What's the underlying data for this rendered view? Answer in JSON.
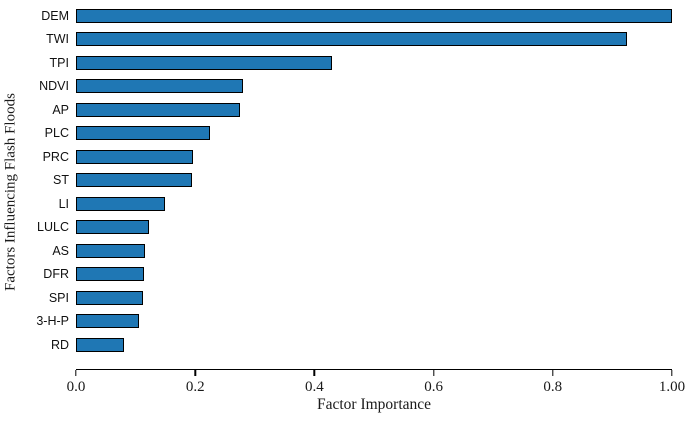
{
  "chart_data": {
    "type": "bar",
    "orientation": "horizontal",
    "title": "",
    "xlabel": "Factor Importance",
    "ylabel": "Factors Influencing Flash Floods",
    "categories": [
      "DEM",
      "TWI",
      "TPI",
      "NDVI",
      "AP",
      "PLC",
      "PRC",
      "ST",
      "LI",
      "LULC",
      "AS",
      "DFR",
      "SPI",
      "3-H-P",
      "RD"
    ],
    "values": [
      1.0,
      0.925,
      0.43,
      0.28,
      0.275,
      0.225,
      0.197,
      0.195,
      0.15,
      0.123,
      0.115,
      0.114,
      0.113,
      0.106,
      0.081
    ],
    "xlim": [
      0,
      1.0
    ],
    "xticks": [
      {
        "value": 0.0,
        "label": "0.0"
      },
      {
        "value": 0.2,
        "label": "0.2"
      },
      {
        "value": 0.4,
        "label": "0.4"
      },
      {
        "value": 0.6,
        "label": "0.6"
      },
      {
        "value": 0.8,
        "label": "0.8"
      },
      {
        "value": 1.0,
        "label": "1.00"
      }
    ],
    "grid": false,
    "legend_position": "none",
    "bar_color": "#1f77b4",
    "bar_edge_color": "#000000",
    "axis_color": "#000000"
  }
}
